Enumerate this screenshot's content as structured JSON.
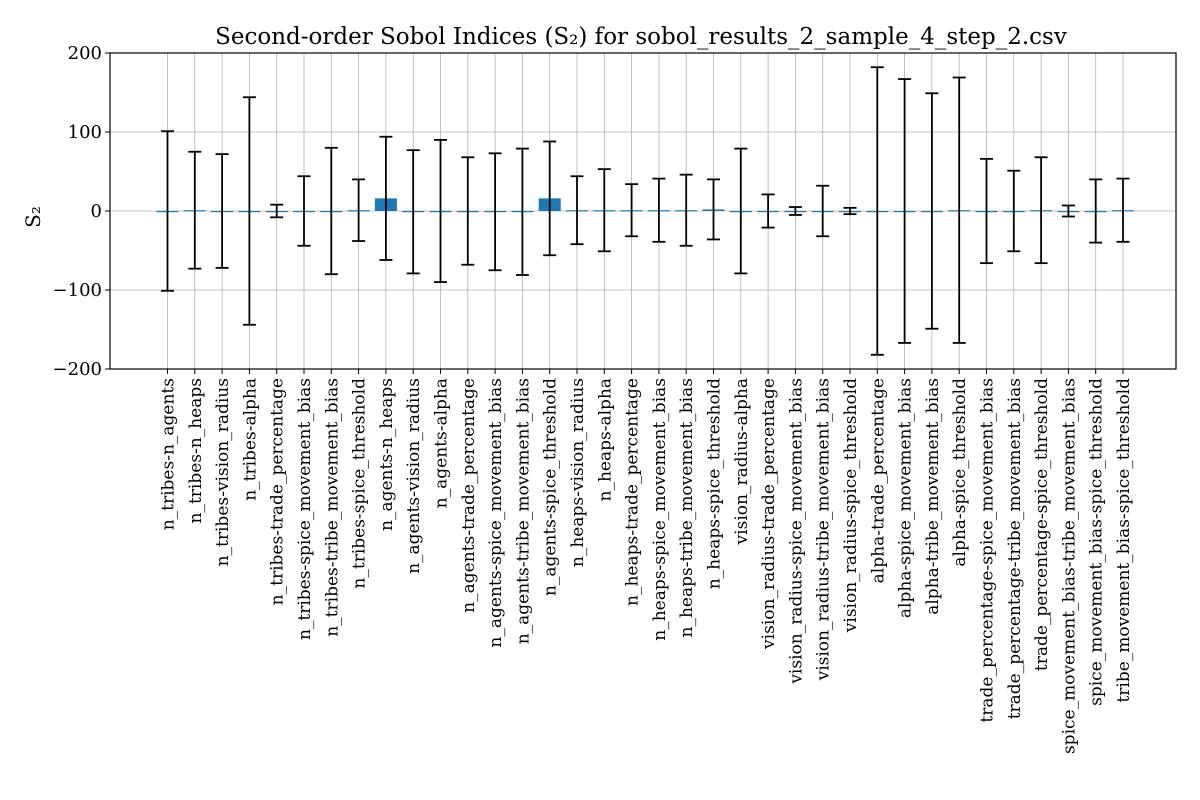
{
  "chart_data": {
    "type": "bar",
    "title": "Second-order Sobol Indices (S₂) for sobol_results_2_sample_4_step_2.csv",
    "xlabel": "",
    "ylabel": "S₂",
    "ylim": [
      -200,
      200
    ],
    "yticks": [
      -200,
      -100,
      0,
      100,
      200
    ],
    "ytick_labels": [
      "−200",
      "−100",
      "0",
      "100",
      "200"
    ],
    "grid": true,
    "bar_color": "#1f77b4",
    "errorbar_color": "#000000",
    "categories": [
      "n_tribes-n_agents",
      "n_tribes-n_heaps",
      "n_tribes-vision_radius",
      "n_tribes-alpha",
      "n_tribes-trade_percentage",
      "n_tribes-spice_movement_bias",
      "n_tribes-tribe_movement_bias",
      "n_tribes-spice_threshold",
      "n_agents-n_heaps",
      "n_agents-vision_radius",
      "n_agents-alpha",
      "n_agents-trade_percentage",
      "n_agents-spice_movement_bias",
      "n_agents-tribe_movement_bias",
      "n_agents-spice_threshold",
      "n_heaps-vision_radius",
      "n_heaps-alpha",
      "n_heaps-trade_percentage",
      "n_heaps-spice_movement_bias",
      "n_heaps-tribe_movement_bias",
      "n_heaps-spice_threshold",
      "vision_radius-alpha",
      "vision_radius-trade_percentage",
      "vision_radius-spice_movement_bias",
      "vision_radius-tribe_movement_bias",
      "vision_radius-spice_threshold",
      "alpha-trade_percentage",
      "alpha-spice_movement_bias",
      "alpha-tribe_movement_bias",
      "alpha-spice_threshold",
      "trade_percentage-spice_movement_bias",
      "trade_percentage-tribe_movement_bias",
      "trade_percentage-spice_threshold",
      "spice_movement_bias-tribe_movement_bias",
      "spice_movement_bias-spice_threshold",
      "tribe_movement_bias-spice_threshold"
    ],
    "values": [
      0,
      1,
      0,
      0,
      0,
      0,
      0,
      1,
      16,
      -1,
      0,
      0,
      -1,
      -1,
      16,
      1,
      1,
      1,
      1,
      1,
      2,
      0,
      0,
      0,
      0,
      0,
      0,
      0,
      0,
      1,
      0,
      0,
      1,
      0,
      0,
      1
    ],
    "errors": [
      101,
      74,
      72,
      144,
      8,
      44,
      80,
      39,
      78,
      78,
      90,
      68,
      74,
      80,
      72,
      43,
      52,
      33,
      40,
      45,
      38,
      79,
      21,
      5,
      32,
      4,
      182,
      167,
      149,
      168,
      66,
      51,
      67,
      7,
      40,
      40
    ]
  }
}
